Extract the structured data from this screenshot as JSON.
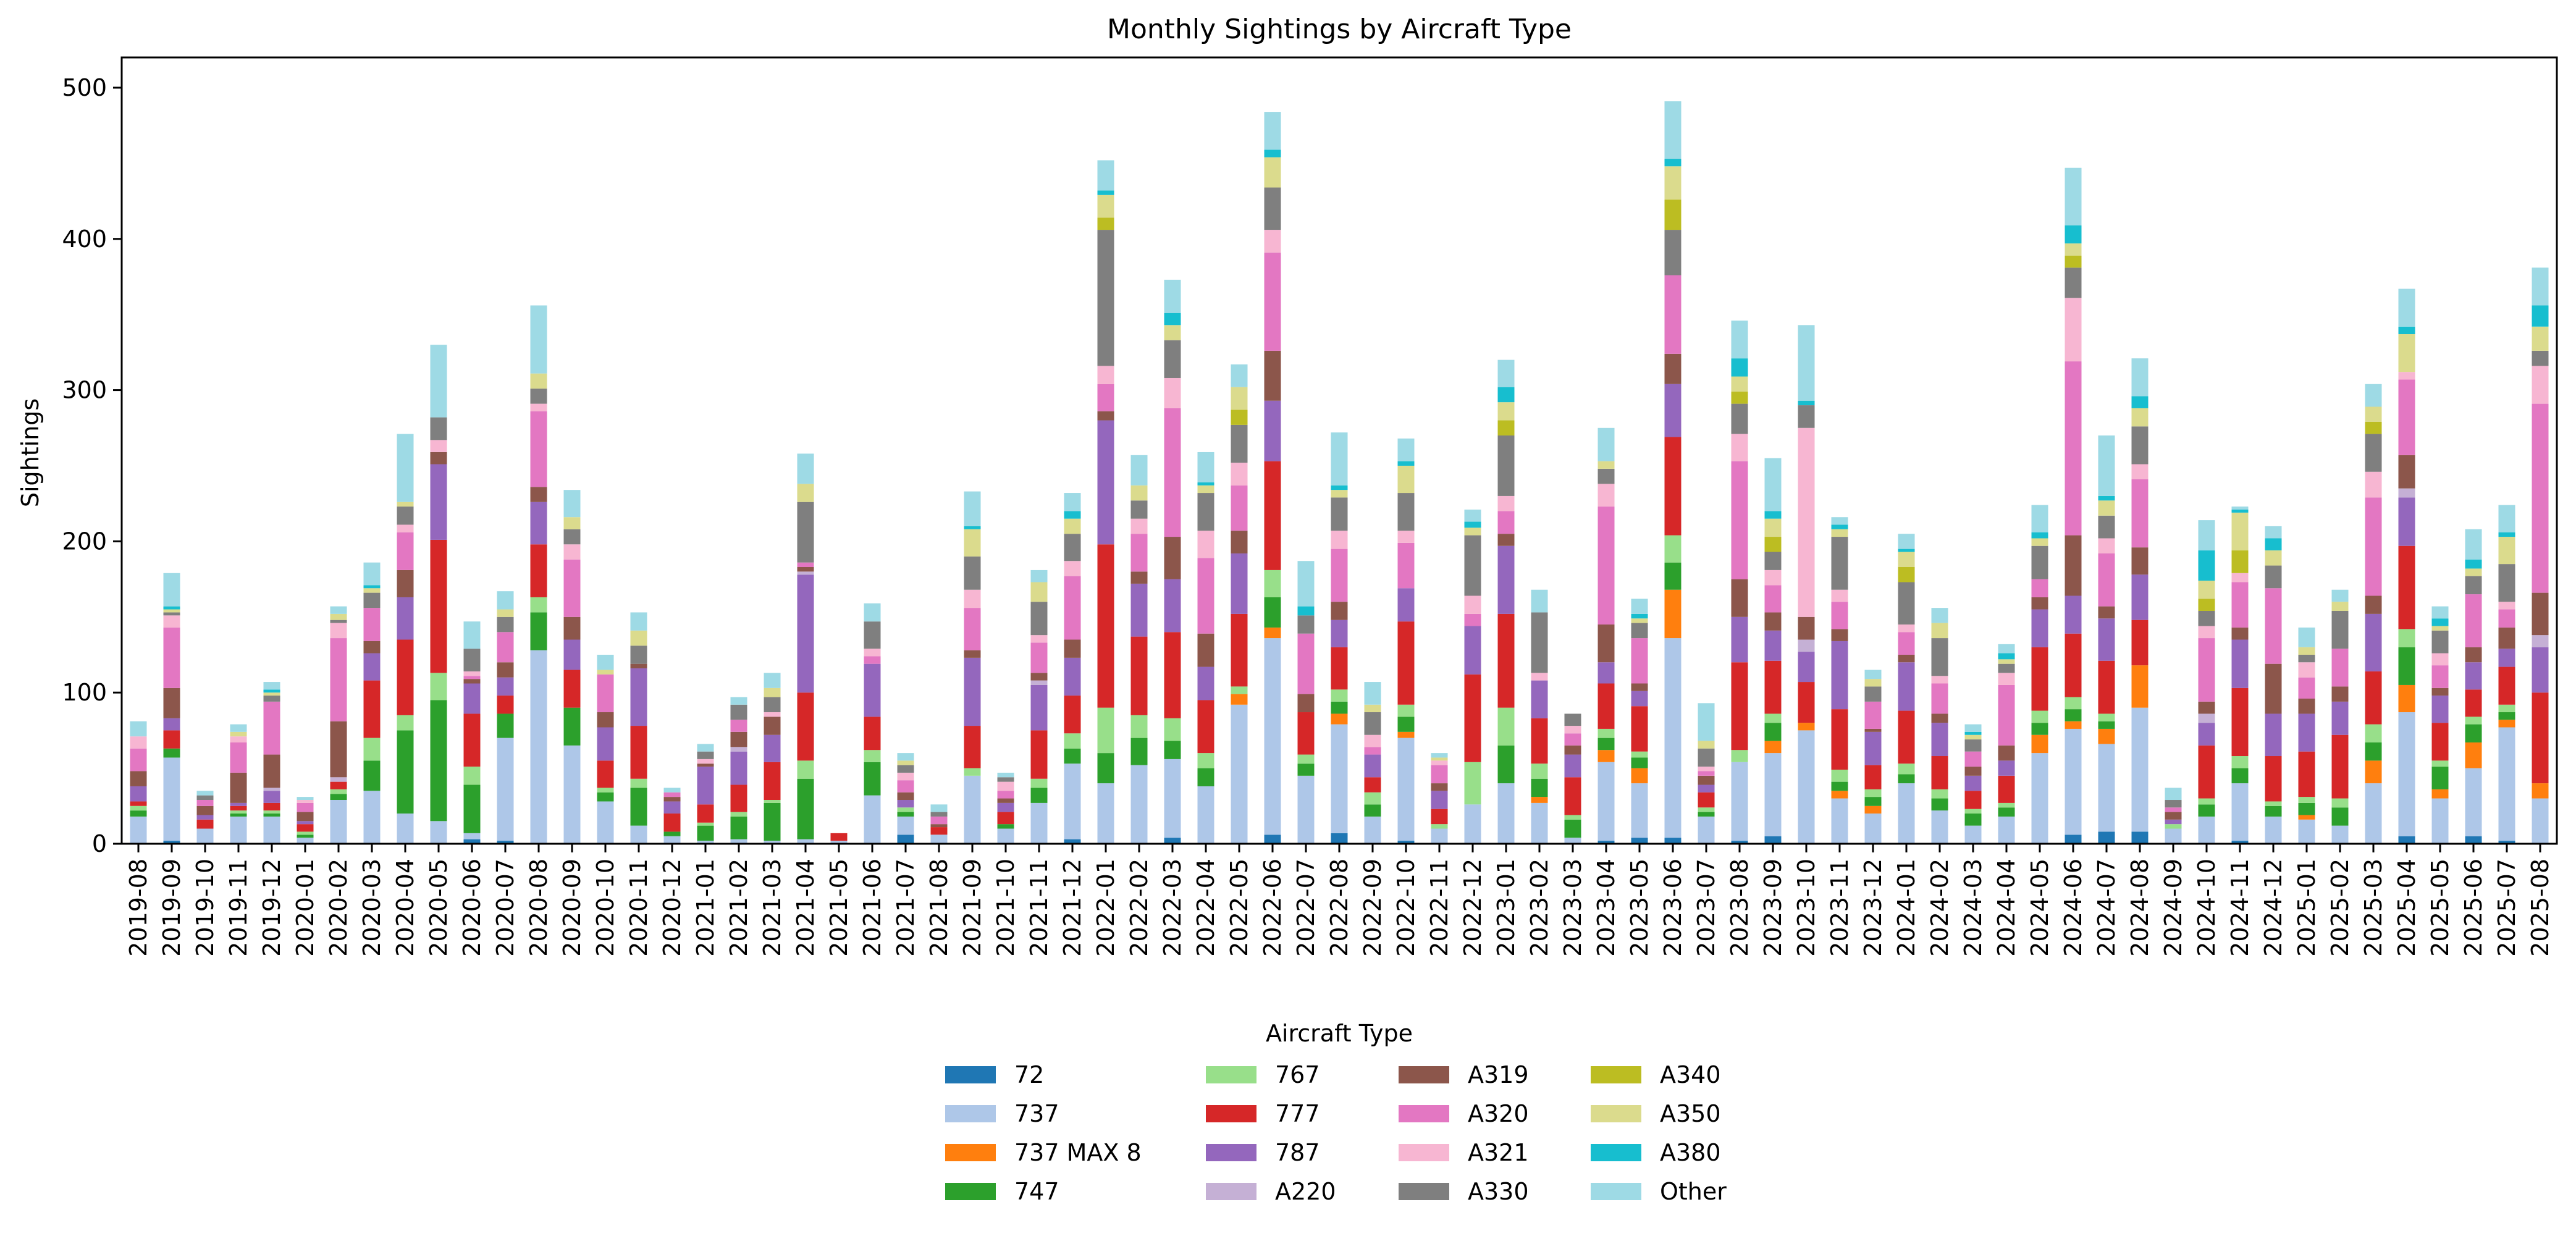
{
  "chart_data": {
    "type": "bar",
    "stacked": true,
    "title": "Monthly Sightings by Aircraft Type",
    "xlabel": "",
    "ylabel": "Sightings",
    "ylim": [
      0,
      520
    ],
    "yticks": [
      0,
      100,
      200,
      300,
      400,
      500
    ],
    "grid": false,
    "legend": {
      "title": "Aircraft Type",
      "placement": "bottom-center",
      "columns": 4
    },
    "categories": [
      "2019-08",
      "2019-09",
      "2019-10",
      "2019-11",
      "2019-12",
      "2020-01",
      "2020-02",
      "2020-03",
      "2020-04",
      "2020-05",
      "2020-06",
      "2020-07",
      "2020-08",
      "2020-09",
      "2020-10",
      "2020-11",
      "2020-12",
      "2021-01",
      "2021-02",
      "2021-03",
      "2021-04",
      "2021-05",
      "2021-06",
      "2021-07",
      "2021-08",
      "2021-09",
      "2021-10",
      "2021-11",
      "2021-12",
      "2022-01",
      "2022-02",
      "2022-03",
      "2022-04",
      "2022-05",
      "2022-06",
      "2022-07",
      "2022-08",
      "2022-09",
      "2022-10",
      "2022-11",
      "2022-12",
      "2023-01",
      "2023-02",
      "2023-03",
      "2023-04",
      "2023-05",
      "2023-06",
      "2023-07",
      "2023-08",
      "2023-09",
      "2023-10",
      "2023-11",
      "2023-12",
      "2024-01",
      "2024-02",
      "2024-03",
      "2024-04",
      "2024-05",
      "2024-06",
      "2024-07",
      "2024-08",
      "2024-09",
      "2024-10",
      "2024-11",
      "2024-12",
      "2025-01",
      "2025-02",
      "2025-03",
      "2025-04",
      "2025-05",
      "2025-06",
      "2025-07",
      "2025-08"
    ],
    "series": [
      {
        "name": "72",
        "color": "#1f77b4",
        "values": [
          0,
          2,
          0,
          0,
          0,
          0,
          0,
          0,
          0,
          0,
          3,
          2,
          0,
          0,
          0,
          0,
          0,
          0,
          0,
          0,
          0,
          0,
          0,
          6,
          0,
          0,
          0,
          0,
          3,
          0,
          0,
          4,
          0,
          0,
          6,
          0,
          7,
          0,
          2,
          0,
          0,
          0,
          0,
          0,
          2,
          4,
          4,
          0,
          2,
          5,
          0,
          0,
          0,
          0,
          0,
          0,
          0,
          0,
          6,
          8,
          8,
          0,
          0,
          2,
          0,
          0,
          0,
          0,
          5,
          0,
          5,
          2,
          0
        ]
      },
      {
        "name": "737",
        "color": "#aec7e8",
        "values": [
          18,
          55,
          10,
          18,
          18,
          4,
          29,
          35,
          20,
          15,
          4,
          68,
          128,
          65,
          28,
          12,
          5,
          2,
          3,
          2,
          3,
          2,
          32,
          12,
          6,
          45,
          10,
          27,
          50,
          40,
          52,
          52,
          38,
          92,
          130,
          45,
          72,
          18,
          68,
          10,
          26,
          40,
          27,
          4,
          52,
          36,
          132,
          18,
          52,
          55,
          75,
          30,
          20,
          40,
          22,
          12,
          18,
          60,
          70,
          58,
          82,
          10,
          18,
          38,
          18,
          16,
          12,
          40,
          82,
          30,
          45,
          75,
          30
        ]
      },
      {
        "name": "737 MAX 8",
        "color": "#ff7f0e",
        "values": [
          0,
          0,
          0,
          0,
          0,
          0,
          0,
          0,
          0,
          0,
          0,
          0,
          0,
          0,
          0,
          0,
          0,
          0,
          0,
          0,
          0,
          0,
          0,
          0,
          0,
          0,
          0,
          0,
          0,
          0,
          0,
          0,
          0,
          7,
          7,
          0,
          7,
          0,
          4,
          0,
          0,
          0,
          4,
          0,
          8,
          10,
          32,
          0,
          0,
          8,
          5,
          5,
          5,
          0,
          0,
          0,
          0,
          12,
          5,
          10,
          28,
          0,
          0,
          0,
          0,
          3,
          0,
          15,
          18,
          6,
          17,
          5,
          10
        ]
      },
      {
        "name": "747",
        "color": "#2ca02c",
        "values": [
          4,
          6,
          0,
          2,
          2,
          2,
          4,
          20,
          55,
          80,
          32,
          16,
          25,
          25,
          6,
          25,
          3,
          10,
          15,
          25,
          40,
          0,
          22,
          3,
          0,
          0,
          3,
          10,
          10,
          20,
          18,
          12,
          12,
          0,
          20,
          8,
          8,
          8,
          10,
          0,
          0,
          25,
          12,
          12,
          8,
          7,
          18,
          3,
          0,
          12,
          0,
          6,
          6,
          6,
          8,
          8,
          6,
          8,
          8,
          5,
          0,
          0,
          8,
          10,
          7,
          8,
          12,
          12,
          25,
          15,
          12,
          5,
          0
        ]
      },
      {
        "name": "767",
        "color": "#98df8a",
        "values": [
          3,
          0,
          0,
          2,
          2,
          2,
          3,
          15,
          10,
          18,
          12,
          0,
          10,
          0,
          3,
          6,
          0,
          2,
          3,
          2,
          12,
          0,
          8,
          3,
          0,
          5,
          0,
          6,
          10,
          30,
          15,
          15,
          10,
          5,
          18,
          6,
          8,
          8,
          8,
          3,
          28,
          25,
          10,
          3,
          6,
          4,
          18,
          3,
          8,
          6,
          0,
          8,
          5,
          7,
          6,
          3,
          3,
          8,
          8,
          5,
          0,
          3,
          4,
          8,
          3,
          4,
          6,
          12,
          12,
          4,
          5,
          5,
          0
        ]
      },
      {
        "name": "777",
        "color": "#d62728",
        "values": [
          3,
          12,
          6,
          3,
          5,
          5,
          5,
          38,
          50,
          88,
          35,
          12,
          35,
          25,
          18,
          35,
          12,
          12,
          18,
          25,
          45,
          5,
          22,
          0,
          5,
          28,
          8,
          32,
          25,
          108,
          52,
          57,
          35,
          48,
          72,
          28,
          28,
          10,
          55,
          10,
          58,
          62,
          30,
          25,
          30,
          30,
          65,
          10,
          58,
          35,
          27,
          40,
          16,
          35,
          22,
          12,
          18,
          42,
          42,
          35,
          30,
          0,
          35,
          45,
          30,
          30,
          42,
          35,
          55,
          25,
          18,
          25,
          60
        ]
      },
      {
        "name": "787",
        "color": "#9467bd",
        "values": [
          10,
          8,
          3,
          2,
          8,
          2,
          0,
          18,
          28,
          50,
          20,
          12,
          28,
          20,
          22,
          38,
          8,
          25,
          22,
          18,
          78,
          0,
          35,
          5,
          0,
          45,
          6,
          30,
          25,
          82,
          35,
          35,
          22,
          40,
          40,
          0,
          18,
          15,
          22,
          12,
          32,
          45,
          25,
          15,
          14,
          10,
          35,
          5,
          30,
          20,
          20,
          45,
          22,
          32,
          22,
          10,
          10,
          25,
          25,
          28,
          30,
          3,
          15,
          32,
          28,
          25,
          22,
          38,
          32,
          18,
          18,
          12,
          30
        ]
      },
      {
        "name": "A220",
        "color": "#c5b0d5",
        "values": [
          0,
          0,
          0,
          0,
          2,
          0,
          3,
          0,
          0,
          0,
          0,
          0,
          0,
          0,
          0,
          0,
          0,
          0,
          3,
          0,
          2,
          0,
          0,
          0,
          0,
          0,
          0,
          3,
          0,
          0,
          0,
          0,
          0,
          0,
          0,
          0,
          0,
          0,
          0,
          0,
          0,
          0,
          0,
          0,
          0,
          0,
          0,
          0,
          0,
          0,
          8,
          0,
          0,
          0,
          0,
          0,
          0,
          0,
          0,
          0,
          0,
          0,
          6,
          0,
          0,
          0,
          0,
          0,
          6,
          0,
          0,
          0,
          8
        ]
      },
      {
        "name": "A319",
        "color": "#8c564b",
        "values": [
          10,
          20,
          6,
          20,
          22,
          6,
          37,
          8,
          18,
          8,
          3,
          10,
          10,
          15,
          10,
          3,
          3,
          2,
          10,
          12,
          3,
          0,
          0,
          5,
          2,
          5,
          3,
          5,
          12,
          6,
          8,
          28,
          22,
          15,
          33,
          12,
          12,
          0,
          0,
          5,
          0,
          8,
          0,
          6,
          25,
          5,
          20,
          6,
          25,
          12,
          15,
          8,
          2,
          5,
          6,
          6,
          10,
          8,
          40,
          8,
          18,
          5,
          8,
          8,
          33,
          10,
          10,
          12,
          22,
          5,
          10,
          14,
          28
        ]
      },
      {
        "name": "A320",
        "color": "#e377c2",
        "values": [
          15,
          40,
          4,
          20,
          35,
          6,
          55,
          22,
          25,
          0,
          2,
          20,
          50,
          38,
          25,
          0,
          3,
          0,
          8,
          0,
          3,
          0,
          5,
          8,
          5,
          28,
          5,
          20,
          42,
          18,
          25,
          85,
          50,
          30,
          65,
          40,
          35,
          5,
          30,
          12,
          8,
          15,
          0,
          8,
          78,
          30,
          52,
          3,
          78,
          18,
          0,
          18,
          18,
          15,
          20,
          10,
          40,
          12,
          115,
          35,
          45,
          3,
          42,
          30,
          50,
          14,
          25,
          65,
          50,
          15,
          35,
          12,
          125
        ]
      },
      {
        "name": "A321",
        "color": "#f7b6d2",
        "values": [
          8,
          8,
          0,
          4,
          0,
          2,
          10,
          0,
          5,
          8,
          3,
          0,
          5,
          10,
          0,
          0,
          0,
          3,
          0,
          3,
          0,
          0,
          5,
          5,
          0,
          12,
          6,
          5,
          10,
          12,
          10,
          20,
          18,
          15,
          15,
          0,
          12,
          8,
          8,
          3,
          12,
          10,
          5,
          5,
          15,
          0,
          0,
          3,
          18,
          10,
          125,
          8,
          0,
          5,
          5,
          0,
          8,
          0,
          42,
          10,
          10,
          0,
          8,
          6,
          0,
          10,
          0,
          17,
          5,
          8,
          0,
          5,
          25
        ]
      },
      {
        "name": "A330",
        "color": "#7f7f7f",
        "values": [
          0,
          2,
          3,
          0,
          4,
          0,
          2,
          10,
          12,
          15,
          15,
          10,
          10,
          10,
          0,
          12,
          0,
          5,
          10,
          10,
          40,
          0,
          18,
          5,
          3,
          22,
          3,
          22,
          18,
          90,
          12,
          25,
          25,
          25,
          28,
          12,
          22,
          15,
          25,
          0,
          40,
          40,
          40,
          8,
          10,
          10,
          30,
          12,
          20,
          12,
          15,
          35,
          10,
          28,
          25,
          8,
          6,
          22,
          20,
          15,
          25,
          5,
          10,
          0,
          15,
          5,
          25,
          25,
          0,
          15,
          12,
          25,
          10
        ]
      },
      {
        "name": "A340",
        "color": "#bcbd22",
        "values": [
          0,
          0,
          0,
          0,
          0,
          0,
          0,
          0,
          0,
          0,
          0,
          0,
          0,
          0,
          0,
          0,
          0,
          0,
          0,
          0,
          0,
          0,
          0,
          0,
          0,
          0,
          0,
          0,
          0,
          8,
          0,
          0,
          0,
          10,
          0,
          0,
          0,
          0,
          0,
          0,
          0,
          10,
          0,
          0,
          0,
          0,
          20,
          0,
          8,
          10,
          0,
          0,
          0,
          10,
          0,
          0,
          0,
          0,
          8,
          0,
          0,
          0,
          8,
          15,
          0,
          0,
          0,
          8,
          0,
          0,
          0,
          0,
          0
        ]
      },
      {
        "name": "A350",
        "color": "#dbdb8d",
        "values": [
          0,
          2,
          0,
          3,
          2,
          0,
          4,
          3,
          3,
          0,
          0,
          5,
          10,
          8,
          3,
          10,
          0,
          0,
          0,
          6,
          12,
          0,
          0,
          3,
          0,
          18,
          0,
          13,
          10,
          15,
          10,
          10,
          5,
          15,
          20,
          0,
          5,
          5,
          18,
          2,
          5,
          12,
          0,
          0,
          5,
          3,
          22,
          5,
          10,
          12,
          0,
          5,
          5,
          10,
          10,
          3,
          3,
          5,
          8,
          10,
          12,
          0,
          12,
          25,
          10,
          5,
          6,
          10,
          25,
          3,
          5,
          18,
          16
        ]
      },
      {
        "name": "A380",
        "color": "#17becf",
        "values": [
          0,
          2,
          0,
          0,
          2,
          0,
          0,
          2,
          0,
          0,
          0,
          0,
          0,
          0,
          0,
          0,
          0,
          0,
          0,
          0,
          0,
          0,
          0,
          0,
          0,
          2,
          0,
          0,
          5,
          3,
          0,
          8,
          2,
          0,
          5,
          6,
          3,
          0,
          3,
          0,
          4,
          10,
          0,
          0,
          0,
          3,
          5,
          0,
          12,
          5,
          3,
          3,
          0,
          2,
          0,
          2,
          4,
          4,
          12,
          3,
          8,
          0,
          20,
          2,
          8,
          0,
          0,
          0,
          5,
          5,
          6,
          3,
          14
        ]
      },
      {
        "name": "Other",
        "color": "#9edae5",
        "values": [
          10,
          22,
          3,
          5,
          5,
          2,
          5,
          15,
          45,
          48,
          18,
          12,
          45,
          18,
          10,
          12,
          3,
          5,
          5,
          10,
          20,
          0,
          12,
          5,
          5,
          23,
          3,
          8,
          12,
          20,
          20,
          22,
          20,
          15,
          25,
          30,
          35,
          15,
          15,
          3,
          8,
          18,
          15,
          0,
          22,
          10,
          38,
          25,
          25,
          35,
          50,
          5,
          6,
          10,
          10,
          5,
          6,
          18,
          38,
          40,
          25,
          8,
          20,
          2,
          8,
          13,
          8,
          15,
          25,
          8,
          20,
          18,
          25
        ]
      }
    ]
  }
}
